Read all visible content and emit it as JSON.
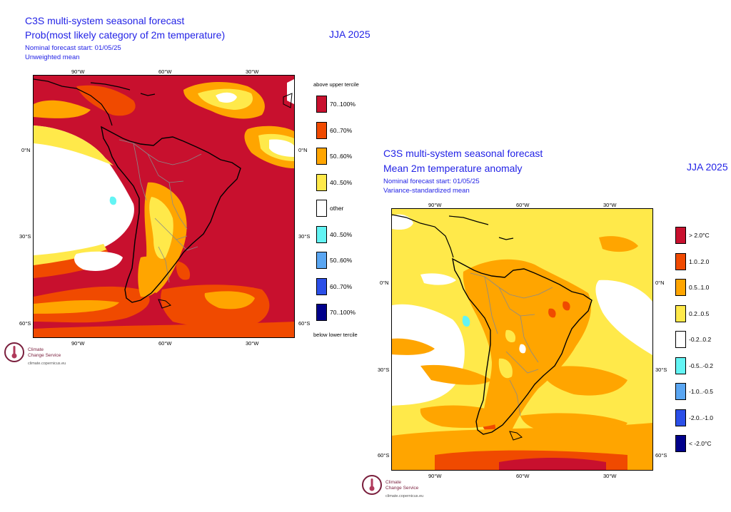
{
  "panel1": {
    "title_line1": "C3S multi-system seasonal forecast",
    "title_line2": "Prob(most likely category of 2m temperature)",
    "subtitle_line1": "Nominal forecast start: 01/05/25",
    "subtitle_line2": "Unweighted mean",
    "period": "JJA 2025",
    "lon_ticks": [
      "90°W",
      "60°W",
      "30°W"
    ],
    "lat_ticks": [
      "0°N",
      "30°S",
      "60°S"
    ],
    "legend": {
      "header": "above upper tercile",
      "footer": "below lower tercile",
      "items": [
        {
          "label": "70..100%",
          "color": "#c8102e"
        },
        {
          "label": "60..70%",
          "color": "#f04a00"
        },
        {
          "label": "50..60%",
          "color": "#ffa500"
        },
        {
          "label": "40..50%",
          "color": "#ffe94a"
        },
        {
          "label": "other",
          "color": "#ffffff"
        },
        {
          "label": "40..50%",
          "color": "#63f4f4"
        },
        {
          "label": "50..60%",
          "color": "#5aa6f2"
        },
        {
          "label": "60..70%",
          "color": "#2b4fe8"
        },
        {
          "label": "70..100%",
          "color": "#00008b"
        }
      ]
    },
    "logo_name_line1": "Climate",
    "logo_name_line2": "Change Service",
    "logo_url": "climate.copernicus.eu"
  },
  "panel2": {
    "title_line1": "C3S multi-system seasonal forecast",
    "title_line2": "Mean 2m temperature anomaly",
    "subtitle_line1": "Nominal forecast start: 01/05/25",
    "subtitle_line2": "Variance-standardized mean",
    "period": "JJA 2025",
    "lon_ticks": [
      "90°W",
      "60°W",
      "30°W"
    ],
    "lat_ticks": [
      "0°N",
      "30°S",
      "60°S"
    ],
    "legend": {
      "items": [
        {
          "label": "> 2.0°C",
          "color": "#c8102e"
        },
        {
          "label": "1.0..2.0",
          "color": "#f04a00"
        },
        {
          "label": "0.5..1.0",
          "color": "#ffa500"
        },
        {
          "label": "0.2..0.5",
          "color": "#ffe94a"
        },
        {
          "label": "-0.2..0.2",
          "color": "#ffffff"
        },
        {
          "label": "-0.5..-0.2",
          "color": "#63f4f4"
        },
        {
          "label": "-1.0..-0.5",
          "color": "#5aa6f2"
        },
        {
          "label": "-2.0..-1.0",
          "color": "#2b4fe8"
        },
        {
          "label": "< -2.0°C",
          "color": "#00008b"
        }
      ]
    },
    "logo_name_line1": "Climate",
    "logo_name_line2": "Change Service",
    "logo_url": "climate.copernicus.eu"
  }
}
